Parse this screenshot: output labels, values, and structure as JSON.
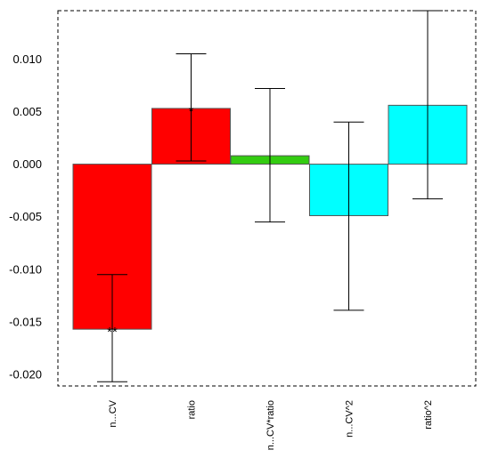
{
  "chart_data": {
    "type": "bar",
    "title": "",
    "xlabel": "",
    "ylabel": "",
    "categories": [
      "n...CV",
      "ratio",
      "n...CV*ratio",
      "n...CV^2",
      "ratio^2"
    ],
    "values": [
      -0.0157,
      0.0053,
      0.0008,
      -0.0049,
      0.0056
    ],
    "error_low": [
      -0.0207,
      0.0003,
      -0.0055,
      -0.0139,
      -0.0033
    ],
    "error_high": [
      -0.0105,
      0.0105,
      0.0072,
      0.004,
      0.0146
    ],
    "significance": [
      "**",
      "*",
      "",
      "",
      ""
    ],
    "colors": [
      "#ff0000",
      "#ff0000",
      "#33cc11",
      "#00ffff",
      "#00ffff"
    ],
    "ylim": [
      -0.0211,
      0.0146
    ],
    "yticks": [
      {
        "value": 0.01,
        "label": "0.010"
      },
      {
        "value": 0.005,
        "label": "0.005"
      },
      {
        "value": 0.0,
        "label": "0.000"
      },
      {
        "value": -0.005,
        "label": "-0.005"
      },
      {
        "value": -0.01,
        "label": "-0.010"
      },
      {
        "value": -0.015,
        "label": "-0.015"
      },
      {
        "value": -0.02,
        "label": "-0.020"
      }
    ],
    "grid": false,
    "legend": "none"
  }
}
